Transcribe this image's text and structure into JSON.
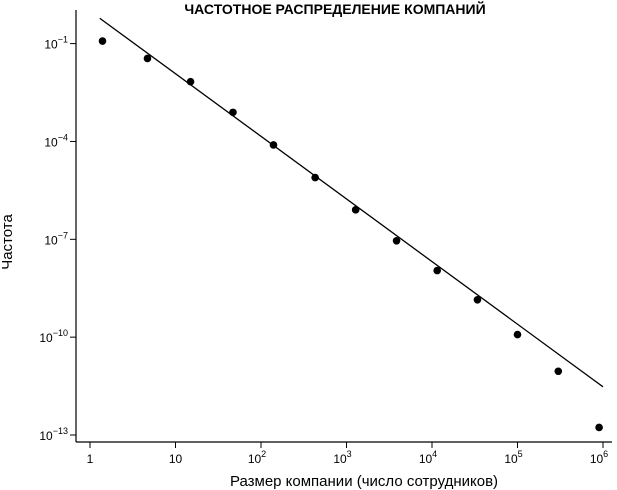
{
  "chart_data": {
    "type": "scatter",
    "title": "ЧАСТОТНОЕ РАСПРЕДЕЛЕНИЕ КОМПАНИЙ",
    "xlabel": "Размер компании (число сотрудников)",
    "ylabel": "Частота",
    "x_scale": "log",
    "y_scale": "log",
    "xlim": [
      1,
      1000000
    ],
    "ylim": [
      1e-13,
      1
    ],
    "x_ticks": [
      {
        "value": 1,
        "base": "1",
        "exp": ""
      },
      {
        "value": 10,
        "base": "10",
        "exp": ""
      },
      {
        "value": 100,
        "base": "10",
        "exp": "2"
      },
      {
        "value": 1000,
        "base": "10",
        "exp": "3"
      },
      {
        "value": 10000,
        "base": "10",
        "exp": "4"
      },
      {
        "value": 100000,
        "base": "10",
        "exp": "5"
      },
      {
        "value": 1000000,
        "base": "10",
        "exp": "6"
      }
    ],
    "y_ticks": [
      {
        "value": 1e-13,
        "base": "10",
        "exp": "−13"
      },
      {
        "value": 1e-10,
        "base": "10",
        "exp": "−10"
      },
      {
        "value": 1e-07,
        "base": "10",
        "exp": "−7"
      },
      {
        "value": 0.0001,
        "base": "10",
        "exp": "−4"
      },
      {
        "value": 0.1,
        "base": "10",
        "exp": "−1"
      }
    ],
    "series": [
      {
        "points": [
          {
            "x": 1.4,
            "y": 0.12
          },
          {
            "x": 4.7,
            "y": 0.035
          },
          {
            "x": 15,
            "y": 0.0068
          },
          {
            "x": 47,
            "y": 0.00078
          },
          {
            "x": 140,
            "y": 7.8e-05
          },
          {
            "x": 430,
            "y": 7.8e-06
          },
          {
            "x": 1280,
            "y": 8e-07
          },
          {
            "x": 3850,
            "y": 9e-08
          },
          {
            "x": 11500,
            "y": 1.1e-08
          },
          {
            "x": 34000,
            "y": 1.4e-09
          },
          {
            "x": 100000,
            "y": 1.2e-10
          },
          {
            "x": 300000,
            "y": 9e-12
          },
          {
            "x": 900000,
            "y": 1.7e-13
          }
        ]
      }
    ],
    "fit_line": {
      "x": [
        1.3,
        1000000
      ],
      "y": [
        0.6,
        3e-12
      ]
    },
    "grid": false,
    "legend": "none"
  }
}
